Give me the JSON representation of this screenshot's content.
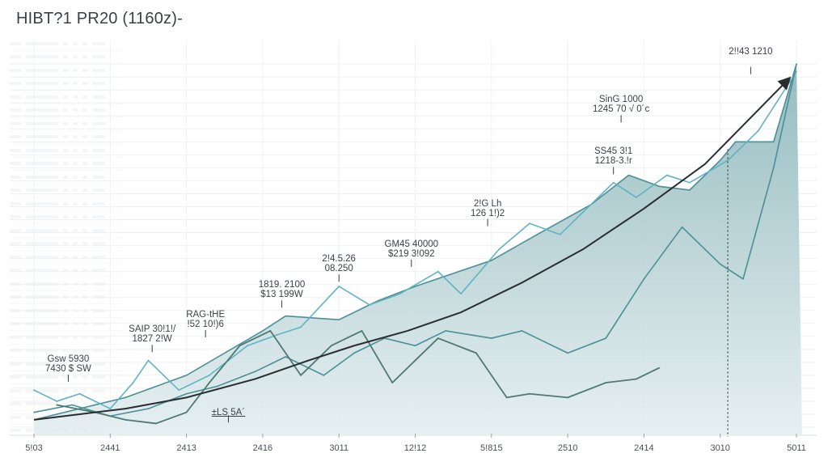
{
  "title": "HIBT?1 PR20 (1160z)-",
  "colors": {
    "area_fill": "#9fc3c6",
    "line_light": "#5fb3c4",
    "line_teal": "#4a8f98",
    "line_dark_green": "#4c7a72",
    "trend": "#2a2d30",
    "grid": "#eef1f3"
  },
  "chart_data": {
    "type": "area",
    "title": "HIBT?1 PR20 (1160z)-",
    "xlabel": "",
    "ylabel": "",
    "x_ticks": [
      "5!03",
      "2441",
      "2413",
      "2416",
      "3011",
      "12!12",
      "5!815",
      "2510",
      "2414",
      "3010",
      "5011"
    ],
    "xlim": [
      0,
      10
    ],
    "ylim": [
      0,
      100
    ],
    "grid": true,
    "series": [
      {
        "name": "area-main",
        "kind": "area",
        "x": [
          0,
          1.2,
          2.0,
          3.0,
          3.3,
          4.0,
          4.5,
          5.0,
          6.0,
          6.6,
          7.3,
          7.8,
          8.2,
          8.6,
          9.0,
          9.2,
          9.7,
          10.0
        ],
        "values": [
          2,
          8,
          14,
          26,
          30,
          29,
          34,
          38,
          45,
          52,
          60,
          68,
          65,
          64,
          72,
          77,
          77,
          98
        ]
      },
      {
        "name": "light-line",
        "kind": "line",
        "x": [
          0,
          0.3,
          0.6,
          1.0,
          1.3,
          1.5,
          1.9,
          2.3,
          2.8,
          3.2,
          3.5,
          4.0,
          4.4,
          4.8,
          5.3,
          5.6,
          6.1,
          6.5,
          6.9,
          7.2,
          7.6,
          7.9,
          8.3,
          8.6,
          9.1,
          9.5,
          10.0
        ],
        "values": [
          10,
          7,
          9,
          5,
          12,
          18,
          10,
          14,
          22,
          25,
          27,
          38,
          33,
          36,
          42,
          36,
          48,
          55,
          52,
          58,
          66,
          62,
          68,
          66,
          72,
          80,
          96
        ]
      },
      {
        "name": "teal-line",
        "kind": "line",
        "x": [
          0,
          0.5,
          1.0,
          1.5,
          2.0,
          2.4,
          2.9,
          3.3,
          3.8,
          4.2,
          4.6,
          5.0,
          5.4,
          6.0,
          6.4,
          7.0,
          7.5,
          8.0,
          8.5,
          9.0,
          9.3,
          9.7,
          10.0
        ],
        "values": [
          4,
          6,
          3,
          5,
          9,
          11,
          15,
          19,
          14,
          20,
          24,
          22,
          26,
          24,
          26,
          20,
          24,
          40,
          54,
          44,
          40,
          70,
          98
        ]
      },
      {
        "name": "dark-green-line",
        "kind": "line",
        "x": [
          0.3,
          0.8,
          1.2,
          1.6,
          2.0,
          2.3,
          2.7,
          3.1,
          3.5,
          3.9,
          4.3,
          4.7,
          5.0,
          5.3,
          5.8,
          6.2,
          6.5,
          7.0,
          7.5,
          7.9,
          8.2
        ],
        "values": [
          6,
          4,
          2,
          1,
          4,
          12,
          22,
          26,
          14,
          22,
          26,
          12,
          18,
          24,
          20,
          8,
          9,
          8,
          12,
          13,
          16
        ]
      },
      {
        "name": "trend",
        "kind": "line",
        "x": [
          0,
          0.6,
          1.2,
          2.0,
          2.9,
          3.6,
          4.2,
          4.9,
          5.6,
          6.4,
          7.2,
          8.0,
          8.8,
          9.9
        ],
        "values": [
          2,
          3.5,
          5,
          8,
          13,
          18,
          22,
          26,
          31,
          39,
          48,
          59,
          71,
          94
        ]
      }
    ],
    "annotations": [
      {
        "line1": "Gsw 5930",
        "line2": "7430 $ SW",
        "x": 0.45,
        "y": 14
      },
      {
        "line1": "SAIP 30!1!/",
        "line2": "1827 2!W",
        "x": 1.55,
        "y": 22
      },
      {
        "line1": "RAG-tHE",
        "line2": "!52 10!)6",
        "x": 2.25,
        "y": 26
      },
      {
        "line1": "1819. 2100",
        "line2": "$13 199W",
        "x": 3.25,
        "y": 34
      },
      {
        "line1": "2!4.5.26",
        "line2": "08.250",
        "x": 4.0,
        "y": 41
      },
      {
        "line1": "GM45 40000",
        "line2": "$219 3!092",
        "x": 4.95,
        "y": 45
      },
      {
        "line1": "2!G Lh",
        "line2": "126 1!)2",
        "x": 5.95,
        "y": 56
      },
      {
        "line1": "SS45 3!1",
        "line2": "1218-3.!r",
        "x": 7.6,
        "y": 70
      },
      {
        "line1": "SinG 1000",
        "line2": "1245 70 √ 0´c",
        "x": 7.7,
        "y": 84
      },
      {
        "line1": "2!!43 1210",
        "line2": "",
        "x": 9.4,
        "y": 97
      },
      {
        "line1": "±LS 5A´",
        "line2": "",
        "x": 2.55,
        "y": 3
      }
    ],
    "marker_line_x": 9.1
  }
}
